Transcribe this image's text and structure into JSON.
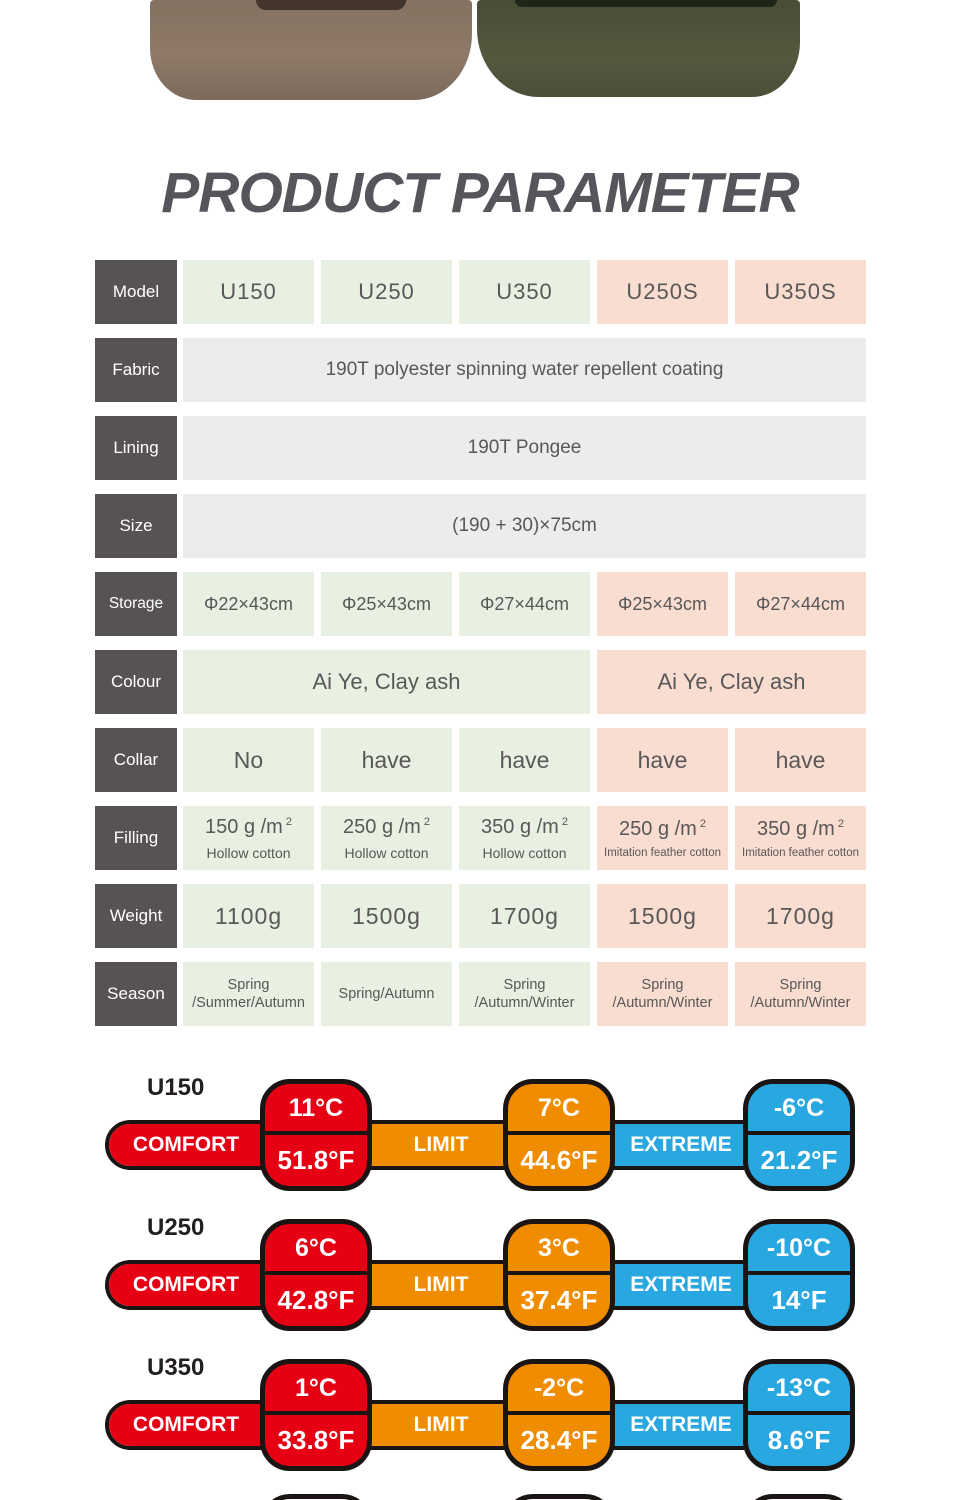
{
  "page": {
    "title": "PRODUCT PARAMETER"
  },
  "colors": {
    "comfort_red": "#e60014",
    "limit_orange": "#f08c00",
    "extreme_blue": "#29a7e0",
    "green_cell": "#e8f0e1",
    "peach_cell": "#f8ddd0",
    "gray_cell": "#ececec",
    "label_gray": "#585353",
    "left_bag": "#8d7867",
    "right_bag": "#51563f"
  },
  "table": {
    "rows": [
      {
        "label": "Model",
        "cells": [
          "U150",
          "U250",
          "U350",
          "U250S",
          "U350S"
        ]
      },
      {
        "label": "Fabric",
        "text": "190T polyester spinning water repellent coating"
      },
      {
        "label": "Lining",
        "text": "190T Pongee"
      },
      {
        "label": "Size",
        "text": "(190 + 30)×75cm"
      },
      {
        "label": "Storage",
        "cells": [
          "Φ22×43cm",
          "Φ25×43cm",
          "Φ27×44cm",
          "Φ25×43cm",
          "Φ27×44cm"
        ]
      },
      {
        "label": "Colour",
        "green": "Ai Ye,  Clay ash",
        "peach": "Ai Ye,  Clay ash"
      },
      {
        "label": "Collar",
        "cells": [
          "No",
          "have",
          "have",
          "have",
          "have"
        ]
      },
      {
        "label": "Filling",
        "cells": [
          {
            "amount": "150 g /m",
            "sup": "2",
            "sub": "Hollow cotton"
          },
          {
            "amount": "250 g /m",
            "sup": "2",
            "sub": "Hollow cotton"
          },
          {
            "amount": "350 g /m",
            "sup": "2",
            "sub": "Hollow cotton"
          },
          {
            "amount": "250 g /m",
            "sup": "2",
            "sub": "Imitation feather cotton"
          },
          {
            "amount": "350 g /m",
            "sup": "2",
            "sub": "Imitation feather cotton"
          }
        ]
      },
      {
        "label": "Weight",
        "cells": [
          "1100g",
          "1500g",
          "1700g",
          "1500g",
          "1700g"
        ]
      },
      {
        "label": "Season",
        "cells": [
          {
            "line1": "Spring",
            "line2": "/Summer/Autumn"
          },
          {
            "line1": "Spring/Autumn",
            "line2": ""
          },
          {
            "line1": "Spring",
            "line2": "/Autumn/Winter"
          },
          {
            "line1": "Spring",
            "line2": "/Autumn/Winter"
          },
          {
            "line1": "Spring",
            "line2": "/Autumn/Winter"
          }
        ]
      }
    ]
  },
  "temps": {
    "zones": [
      "COMFORT",
      "LIMIT",
      "EXTREME"
    ],
    "rows": [
      {
        "model": "U150",
        "comfort_c": "11°C",
        "comfort_f": "51.8°F",
        "limit_c": "7°C",
        "limit_f": "44.6°F",
        "extreme_c": "-6°C",
        "extreme_f": "21.2°F"
      },
      {
        "model": "U250",
        "comfort_c": "6°C",
        "comfort_f": "42.8°F",
        "limit_c": "3°C",
        "limit_f": "37.4°F",
        "extreme_c": "-10°C",
        "extreme_f": "14°F"
      },
      {
        "model": "U350",
        "comfort_c": "1°C",
        "comfort_f": "33.8°F",
        "limit_c": "-2°C",
        "limit_f": "28.4°F",
        "extreme_c": "-13°C",
        "extreme_f": "8.6°F"
      }
    ]
  }
}
